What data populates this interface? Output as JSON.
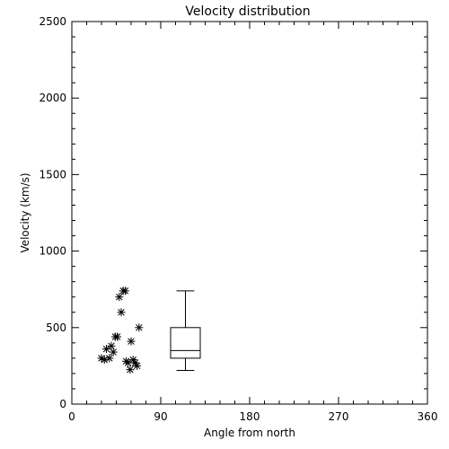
{
  "chart_data": {
    "type": "scatter",
    "title": "Velocity distribution",
    "xlabel": "Angle from north",
    "ylabel": "Velocity (km/s)",
    "xlim": [
      0,
      360
    ],
    "ylim": [
      0,
      2500
    ],
    "x_ticks": [
      0,
      90,
      180,
      270,
      360
    ],
    "y_ticks": [
      0,
      500,
      1000,
      1500,
      2000,
      2500
    ],
    "marker": "asterisk",
    "grid": false,
    "points": [
      {
        "x": 30,
        "y": 300
      },
      {
        "x": 33,
        "y": 290
      },
      {
        "x": 35,
        "y": 360
      },
      {
        "x": 38,
        "y": 300
      },
      {
        "x": 40,
        "y": 380
      },
      {
        "x": 42,
        "y": 340
      },
      {
        "x": 44,
        "y": 440
      },
      {
        "x": 46,
        "y": 440
      },
      {
        "x": 48,
        "y": 700
      },
      {
        "x": 50,
        "y": 600
      },
      {
        "x": 52,
        "y": 740
      },
      {
        "x": 54,
        "y": 740
      },
      {
        "x": 55,
        "y": 280
      },
      {
        "x": 57,
        "y": 270
      },
      {
        "x": 59,
        "y": 225
      },
      {
        "x": 60,
        "y": 410
      },
      {
        "x": 62,
        "y": 290
      },
      {
        "x": 64,
        "y": 270
      },
      {
        "x": 66,
        "y": 250
      },
      {
        "x": 68,
        "y": 500
      }
    ],
    "boxplot": {
      "x_center": 115,
      "half_width": 15,
      "whisker_low": 220,
      "q1": 300,
      "median": 350,
      "q3": 500,
      "whisker_high": 740
    }
  }
}
